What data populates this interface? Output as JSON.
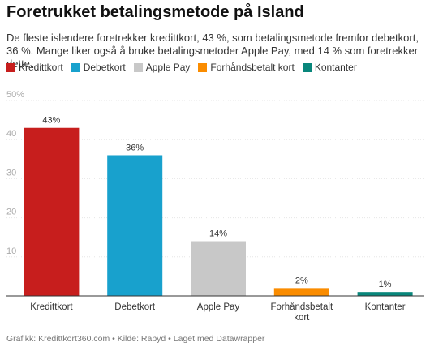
{
  "title": "Foretrukket betalingsmetode på Island",
  "subtitle": "De fleste islendere foretrekker kredittkort, 43 %, som betalingsmetode fremfor debetkort, 36 %. Mange liker også å bruke betalingsmetoder Apple Pay, med 14 % som foretrekker dette.",
  "legend": [
    {
      "label": "Kredittkort",
      "color": "#c71e1d"
    },
    {
      "label": "Debetkort",
      "color": "#18a1cd"
    },
    {
      "label": "Apple Pay",
      "color": "#c8c8c8"
    },
    {
      "label": "Forhåndsbetalt kort",
      "color": "#fa8c00"
    },
    {
      "label": "Kontanter",
      "color": "#09867b"
    }
  ],
  "footer": "Grafikk: Kredittkort360.com • Kilde: Rapyd • Laget med Datawrapper",
  "chart_data": {
    "type": "bar",
    "categories": [
      "Kredittkort",
      "Debetkort",
      "Apple Pay",
      "Forhåndsbetalt kort",
      "Kontanter"
    ],
    "category_lines": [
      [
        "Kredittkort"
      ],
      [
        "Debetkort"
      ],
      [
        "Apple Pay"
      ],
      [
        "Forhåndsbetalt",
        "kort"
      ],
      [
        "Kontanter"
      ]
    ],
    "values": [
      43,
      36,
      14,
      2,
      1
    ],
    "value_labels": [
      "43%",
      "36%",
      "14%",
      "2%",
      "1%"
    ],
    "colors": [
      "#c71e1d",
      "#18a1cd",
      "#c8c8c8",
      "#fa8c00",
      "#09867b"
    ],
    "yticks": [
      10,
      20,
      30,
      40,
      50
    ],
    "ytick_labels": [
      "10",
      "20",
      "30",
      "40",
      "50%"
    ],
    "ylim": [
      0,
      50
    ],
    "grid": true,
    "legend_position": "top"
  }
}
